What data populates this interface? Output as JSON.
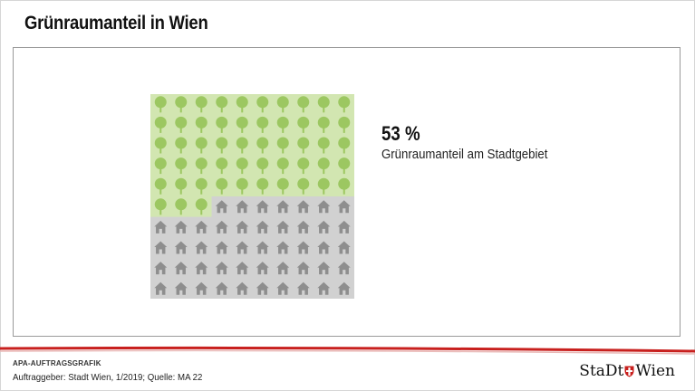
{
  "title": "Grünraumanteil in Wien",
  "chart_data": {
    "type": "waffle",
    "grid_rows": 10,
    "grid_cols": 10,
    "categories": [
      "Grünraum",
      "Bebaut"
    ],
    "values": [
      53,
      47
    ],
    "unit": "%",
    "big_number": "53 %",
    "big_label": "Grünraumanteil am Stadtgebiet",
    "colors": {
      "green_bg": "#d2e6b1",
      "green_icon": "#9cc761",
      "gray_bg": "#d1d1d1",
      "gray_icon": "#8e8e8e"
    },
    "icons": {
      "green": "tree-icon",
      "gray": "house-icon"
    }
  },
  "footer": {
    "agency": "APA-AUFTRAGSGRAFIK",
    "source": "Auftraggeber: Stadt Wien, 1/2019; Quelle: MA 22",
    "logo_left": "StaDt",
    "logo_right": "Wien"
  }
}
